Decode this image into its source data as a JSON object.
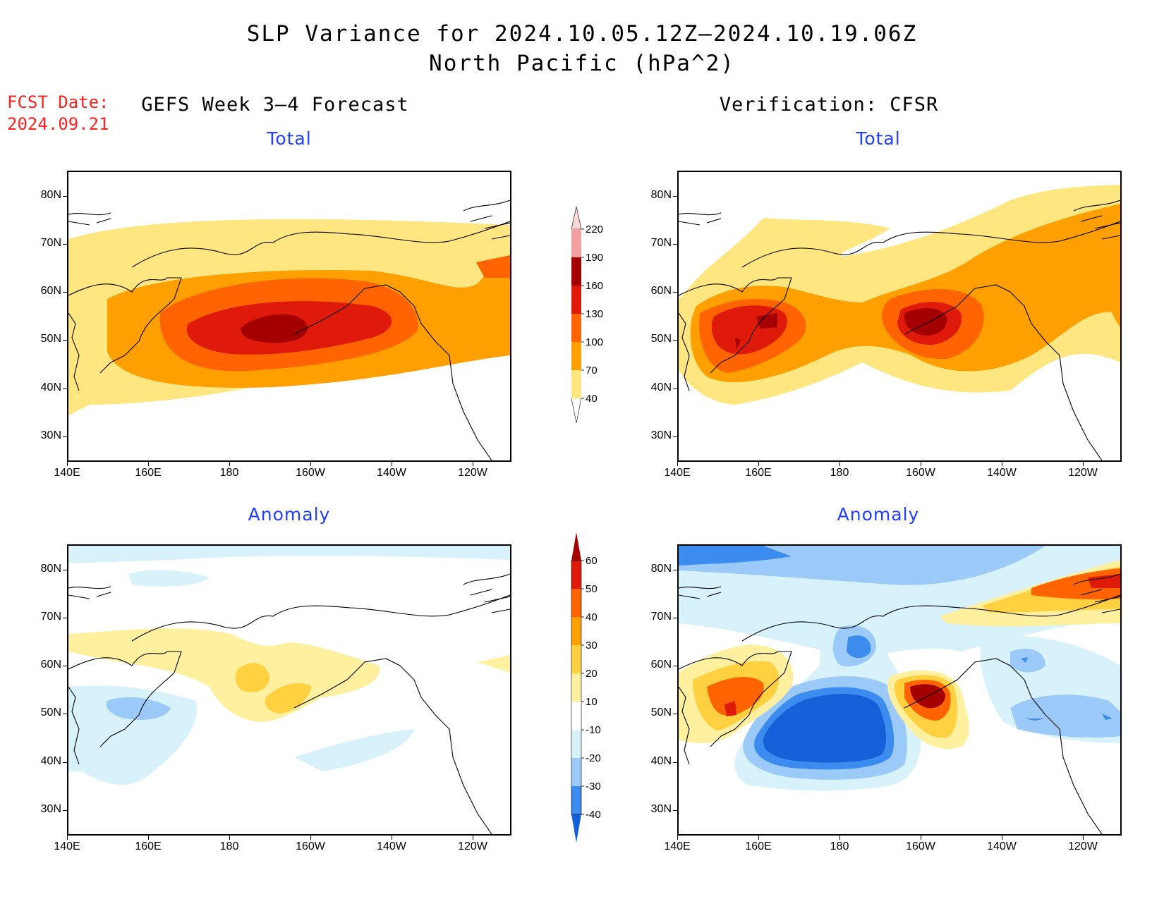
{
  "header": {
    "title": "SLP Variance for 2024.10.05.12Z—2024.10.19.06Z",
    "subtitle": "North Pacific (hPa^2)",
    "fcst_label": "FCST Date:",
    "fcst_date": "2024.09.21"
  },
  "columns": {
    "left": "GEFS Week 3—4 Forecast",
    "right": "Verification: CFSR"
  },
  "panels": {
    "top_left_title": "Total",
    "top_right_title": "Total",
    "bottom_left_title": "Anomaly",
    "bottom_right_title": "Anomaly"
  },
  "axes": {
    "lat_labels": [
      "80N",
      "70N",
      "60N",
      "50N",
      "40N",
      "30N"
    ],
    "lon_labels": [
      "140E",
      "160E",
      "180",
      "160W",
      "140W",
      "120W"
    ]
  },
  "colorbar_total": {
    "levels": [
      "40",
      "70",
      "100",
      "130",
      "160",
      "190",
      "220"
    ],
    "colors": [
      "#ffe680",
      "#ffa000",
      "#ff6400",
      "#e01a0a",
      "#a50000",
      "#f4a0a0",
      "#ffd8d8"
    ]
  },
  "colorbar_anomaly": {
    "levels": [
      "-40",
      "-30",
      "-20",
      "-10",
      "10",
      "20",
      "30",
      "40",
      "50",
      "60"
    ],
    "colors": [
      "#1560d8",
      "#3c8cf0",
      "#9ccaf8",
      "#d8f2fc",
      "#ffffff",
      "#fff0a0",
      "#ffd040",
      "#ffa000",
      "#ff6400",
      "#e01a0a",
      "#a50000"
    ]
  },
  "colors": {
    "title_red": "#ff2020",
    "subtitle_blue": "#1f3fff"
  }
}
